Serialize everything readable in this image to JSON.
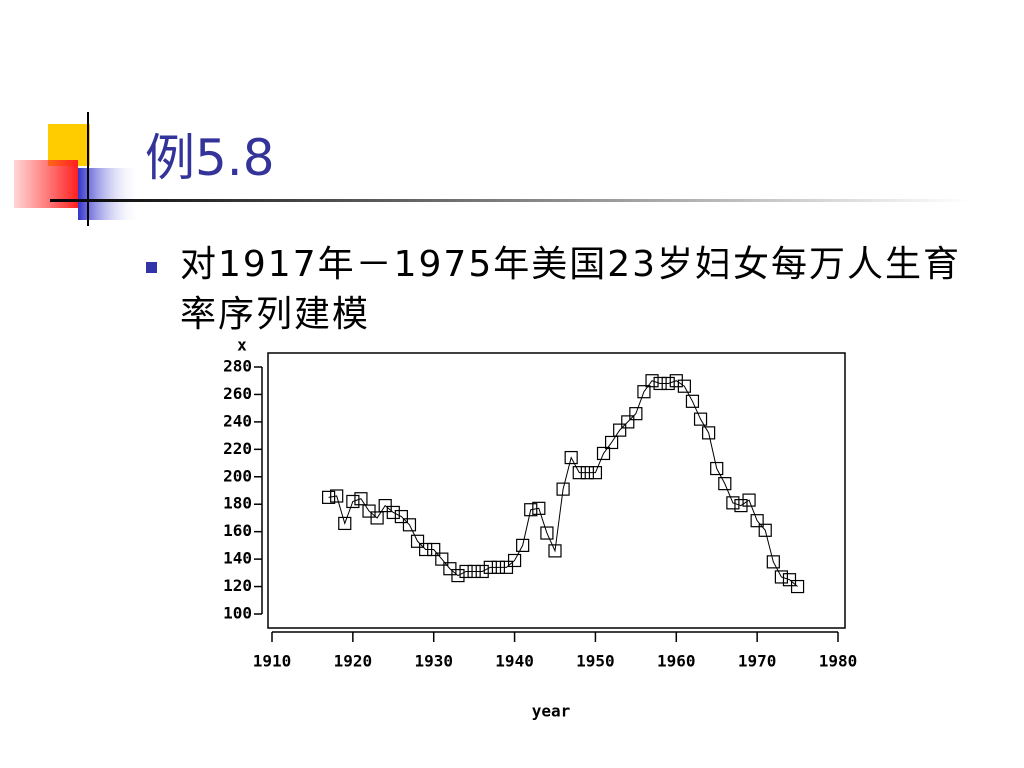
{
  "header": {
    "title": "例5.8"
  },
  "bullet": "对1917年－1975年美国23岁妇女每万人生育率序列建模",
  "chart_data": {
    "type": "line",
    "x_label": "year",
    "y_label": "x",
    "x": [
      1917,
      1918,
      1919,
      1920,
      1921,
      1922,
      1923,
      1924,
      1925,
      1926,
      1927,
      1928,
      1929,
      1930,
      1931,
      1932,
      1933,
      1934,
      1935,
      1936,
      1937,
      1938,
      1939,
      1940,
      1941,
      1942,
      1943,
      1944,
      1945,
      1946,
      1947,
      1948,
      1949,
      1950,
      1951,
      1952,
      1953,
      1954,
      1955,
      1956,
      1957,
      1958,
      1959,
      1960,
      1961,
      1962,
      1963,
      1964,
      1965,
      1966,
      1967,
      1968,
      1969,
      1970,
      1971,
      1972,
      1973,
      1974,
      1975
    ],
    "series": [
      {
        "color": "#000000",
        "values": [
          185,
          186,
          166,
          182,
          184,
          175,
          170,
          179,
          174,
          171,
          165,
          153,
          147,
          147,
          140,
          133,
          128,
          131,
          131,
          131,
          134,
          134,
          134,
          139,
          150,
          176,
          177,
          159,
          146,
          191,
          214,
          203,
          203,
          203,
          217,
          225,
          234,
          240,
          246,
          262,
          270,
          268,
          268,
          270,
          266,
          255,
          242,
          232,
          206,
          195,
          181,
          179,
          183,
          168,
          161,
          138,
          127,
          125,
          120
        ]
      }
    ],
    "xlim": [
      1910,
      1980
    ],
    "xticks": [
      1910,
      1920,
      1930,
      1940,
      1950,
      1960,
      1970,
      1980
    ],
    "ylim": [
      100,
      280
    ],
    "yticks": [
      100,
      120,
      140,
      160,
      180,
      200,
      220,
      240,
      260,
      280
    ]
  }
}
